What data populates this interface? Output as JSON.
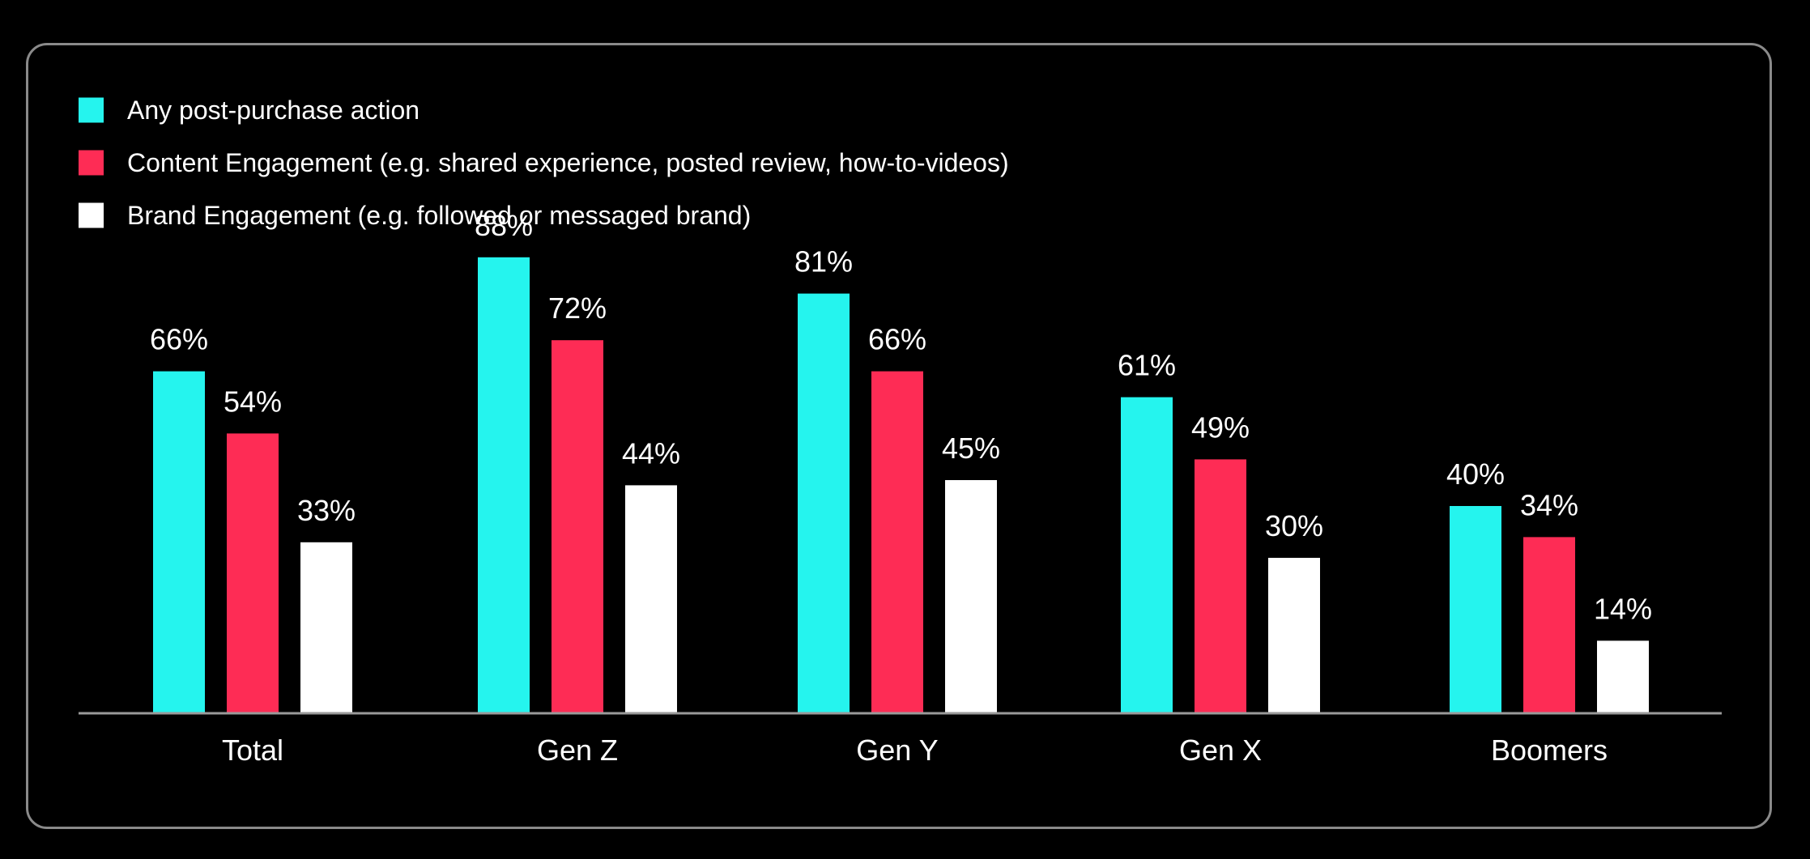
{
  "chart_data": {
    "type": "bar",
    "title": "",
    "xlabel": "",
    "ylabel": "",
    "ylim": [
      0,
      100
    ],
    "grid": false,
    "legend_position": "top-left",
    "value_suffix": "%",
    "categories": [
      "Total",
      "Gen Z",
      "Gen Y",
      "Gen X",
      "Boomers"
    ],
    "series": [
      {
        "name": "Any post-purchase action",
        "color": "#25F4EE",
        "values": [
          66,
          88,
          81,
          61,
          40
        ]
      },
      {
        "name": "Content Engagement (e.g. shared experience, posted review, how-to-videos)",
        "color": "#FE2C55",
        "values": [
          54,
          72,
          66,
          49,
          34
        ]
      },
      {
        "name": "Brand Engagement (e.g. followed or messaged brand)",
        "color": "#FFFFFF",
        "values": [
          33,
          44,
          45,
          30,
          14
        ]
      }
    ]
  },
  "colors": {
    "background": "#000000",
    "frame_border": "#8a8a8a",
    "text": "#FFFFFF",
    "axis": "#9a9a9a"
  }
}
